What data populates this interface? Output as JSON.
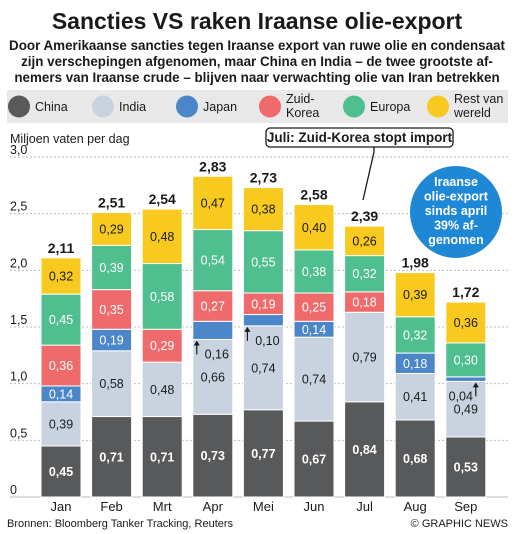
{
  "title": "Sancties VS raken Iraanse olie-export",
  "subtitle": [
    "Door Amerikaanse sancties tegen Iraanse export van ruwe olie en condensaat",
    "zijn verschepingen afgenomen, maar China en India – de twee grootste af-",
    "nemers van Iraanse crude – blijven naar verwachting olie van Iran betrekken"
  ],
  "legend": [
    {
      "name": "China",
      "color": "#58595b",
      "lines": [
        "China"
      ]
    },
    {
      "name": "India",
      "color": "#c8d3df",
      "lines": [
        "India"
      ]
    },
    {
      "name": "Japan",
      "color": "#4a86c8",
      "lines": [
        "Japan"
      ]
    },
    {
      "name": "Zuid-Korea",
      "color": "#ef6b6b",
      "lines": [
        "Zuid-",
        "Korea"
      ]
    },
    {
      "name": "Europa",
      "color": "#4fbf8f",
      "lines": [
        "Europa"
      ]
    },
    {
      "name": "Rest van wereld",
      "color": "#f8ca1f",
      "lines": [
        "Rest van",
        "wereld"
      ]
    }
  ],
  "annotation": "Juli: Zuid-Korea stopt import",
  "callout": [
    "Iraanse",
    "olie-export",
    "sinds april",
    "39% af-",
    "genomen"
  ],
  "footer": {
    "source": "Bronnen: Bloomberg Tanker Tracking, Reuters",
    "credit": "© GRAPHIC NEWS"
  },
  "chart_data": {
    "type": "bar",
    "stacked": true,
    "ylabel": "Miljoen vaten per dag",
    "ylim": [
      0,
      3.0
    ],
    "yticks": [
      "0",
      "0,5",
      "1,0",
      "1,5",
      "2,0",
      "2,5",
      "3,0"
    ],
    "grid": true,
    "legend_position": "top",
    "categories": [
      "Jan",
      "Feb",
      "Mrt",
      "Apr",
      "Mei",
      "Jun",
      "Jul",
      "Aug",
      "Sep"
    ],
    "totals": [
      "2,11",
      "2,51",
      "2,54",
      "2,83",
      "2,73",
      "2,58",
      "2,39",
      "1,98",
      "1,72"
    ],
    "series": [
      {
        "name": "China",
        "values": [
          0.45,
          0.71,
          0.71,
          0.73,
          0.77,
          0.67,
          0.84,
          0.68,
          0.53
        ],
        "labels": [
          "0,45",
          "0,71",
          "0,71",
          "0,73",
          "0,77",
          "0,67",
          "0,84",
          "0,68",
          "0,53"
        ]
      },
      {
        "name": "India",
        "values": [
          0.39,
          0.58,
          0.48,
          0.66,
          0.74,
          0.74,
          0.79,
          0.41,
          0.49
        ],
        "labels": [
          "0,39",
          "0,58",
          "0,48",
          "0,66",
          "0,74",
          "0,74",
          "0,79",
          "0,41",
          "0,49"
        ]
      },
      {
        "name": "Japan",
        "values": [
          0.14,
          0.19,
          0,
          0.16,
          0.1,
          0.14,
          0,
          0.18,
          0.04
        ],
        "labels": [
          "0,14",
          "0,19",
          "",
          "0,16",
          "0,10",
          "0,14",
          "",
          "0,18",
          "0,04"
        ]
      },
      {
        "name": "Zuid-Korea",
        "values": [
          0.36,
          0.35,
          0.29,
          0.27,
          0.19,
          0.25,
          0.18,
          0,
          0
        ],
        "labels": [
          "0,36",
          "0,35",
          "0,29",
          "0,27",
          "0,19",
          "0,25",
          "0,18",
          "",
          ""
        ]
      },
      {
        "name": "Europa",
        "values": [
          0.45,
          0.39,
          0.58,
          0.54,
          0.55,
          0.38,
          0.32,
          0.32,
          0.3
        ],
        "labels": [
          "0,45",
          "0,39",
          "0,58",
          "0,54",
          "0,55",
          "0,38",
          "0,32",
          "0,32",
          "0,30"
        ]
      },
      {
        "name": "Rest van wereld",
        "values": [
          0.32,
          0.29,
          0.48,
          0.47,
          0.38,
          0.4,
          0.26,
          0.39,
          0.36
        ],
        "labels": [
          "0,32",
          "0,29",
          "0,48",
          "0,47",
          "0,38",
          "0,40",
          "0,26",
          "0,39",
          "0,36"
        ]
      }
    ]
  }
}
